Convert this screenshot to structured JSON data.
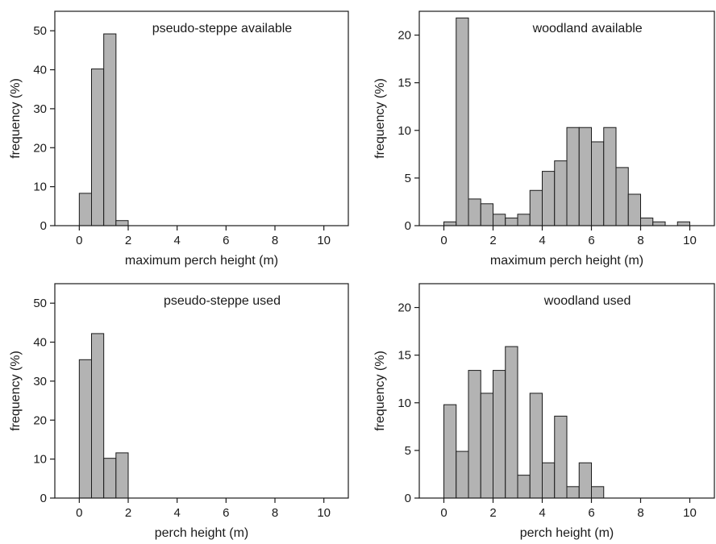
{
  "chart_data": [
    {
      "type": "bar",
      "title": "pseudo-steppe available",
      "xlabel": "maximum perch height (m)",
      "ylabel": "frequency (%)",
      "xlim": [
        -1,
        11
      ],
      "ylim": [
        0,
        55
      ],
      "xticks": [
        0,
        2,
        4,
        6,
        8,
        10
      ],
      "yticks": [
        0,
        10,
        20,
        30,
        40,
        50
      ],
      "bin_width": 0.5,
      "bins": [
        0,
        0.5,
        1.0,
        1.5
      ],
      "values": [
        8.3,
        40.2,
        49.2,
        1.3
      ]
    },
    {
      "type": "bar",
      "title": "woodland available",
      "xlabel": "maximum perch height (m)",
      "ylabel": "frequency (%)",
      "xlim": [
        -1,
        11
      ],
      "ylim": [
        0,
        22.5
      ],
      "xticks": [
        0,
        2,
        4,
        6,
        8,
        10
      ],
      "yticks": [
        0,
        5,
        10,
        15,
        20
      ],
      "bin_width": 0.5,
      "bins": [
        0,
        0.5,
        1.0,
        1.5,
        2.0,
        2.5,
        3.0,
        3.5,
        4.0,
        4.5,
        5.0,
        5.5,
        6.0,
        6.5,
        7.0,
        7.5,
        8.0,
        8.5,
        9.5
      ],
      "values": [
        0.4,
        21.8,
        2.8,
        2.3,
        1.2,
        0.8,
        1.2,
        3.7,
        5.7,
        6.8,
        10.3,
        10.3,
        8.8,
        10.3,
        6.1,
        3.3,
        0.8,
        0.4,
        0.4
      ]
    },
    {
      "type": "bar",
      "title": "pseudo-steppe used",
      "xlabel": "perch height (m)",
      "ylabel": "frequency (%)",
      "xlim": [
        -1,
        11
      ],
      "ylim": [
        0,
        55
      ],
      "xticks": [
        0,
        2,
        4,
        6,
        8,
        10
      ],
      "yticks": [
        0,
        10,
        20,
        30,
        40,
        50
      ],
      "bin_width": 0.5,
      "bins": [
        0,
        0.5,
        1.0,
        1.5
      ],
      "values": [
        35.5,
        42.2,
        10.2,
        11.6
      ]
    },
    {
      "type": "bar",
      "title": "woodland used",
      "xlabel": "perch height (m)",
      "ylabel": "frequency (%)",
      "xlim": [
        -1,
        11
      ],
      "ylim": [
        0,
        22.5
      ],
      "xticks": [
        0,
        2,
        4,
        6,
        8,
        10
      ],
      "yticks": [
        0,
        5,
        10,
        15,
        20
      ],
      "bin_width": 0.5,
      "bins": [
        0,
        0.5,
        1.0,
        1.5,
        2.0,
        2.5,
        3.0,
        3.5,
        4.0,
        4.5,
        5.0,
        5.5,
        6.0
      ],
      "values": [
        9.8,
        4.9,
        13.4,
        11.0,
        13.4,
        15.9,
        2.4,
        11.0,
        3.7,
        8.6,
        1.2,
        3.7,
        1.2
      ]
    }
  ],
  "colors": {
    "bar_fill": "#b3b3b3",
    "bar_stroke": "#1a1a1a",
    "axis": "#1a1a1a"
  }
}
